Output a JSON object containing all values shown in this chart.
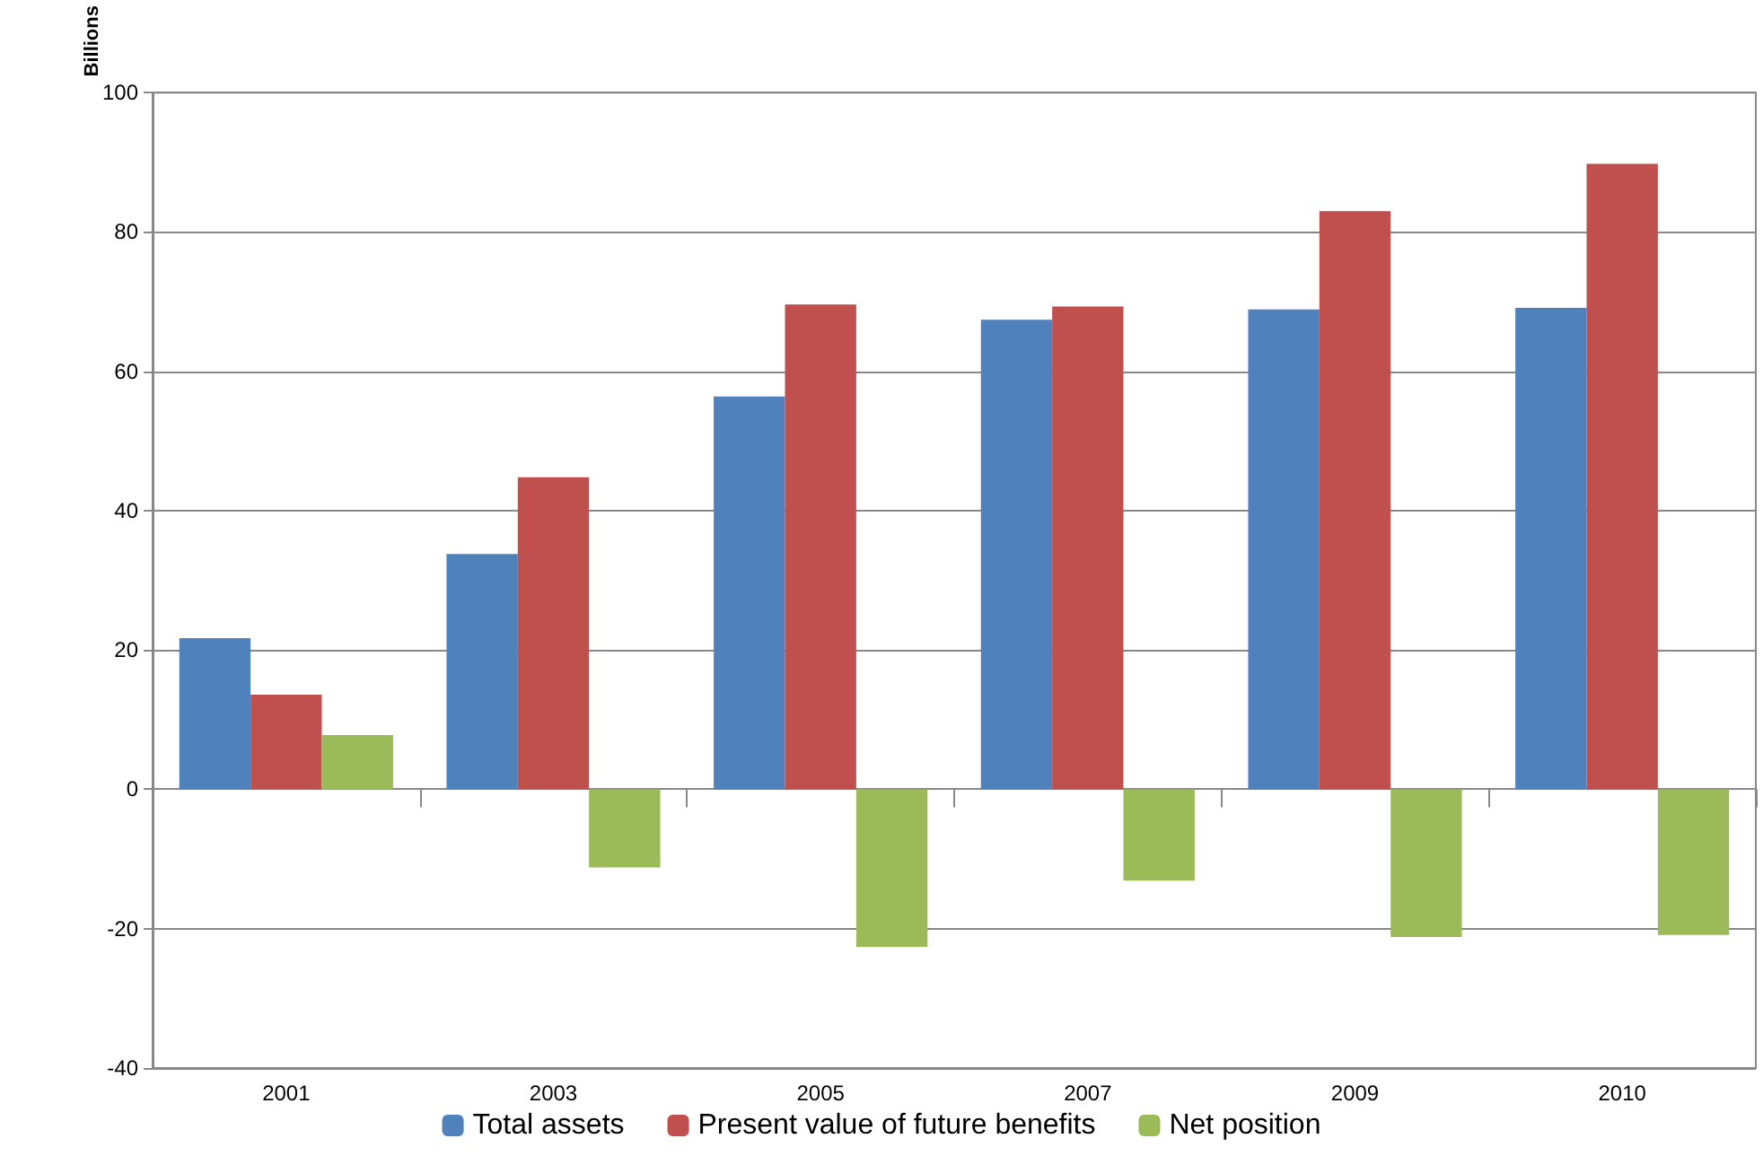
{
  "chart_data": {
    "type": "bar",
    "ylabel": "Billions",
    "categories": [
      "2001",
      "2003",
      "2005",
      "2007",
      "2009",
      "2010"
    ],
    "series": [
      {
        "name": "Total assets",
        "color": "#4f81bd",
        "values": [
          21.7,
          33.8,
          56.4,
          67.4,
          68.9,
          69.1
        ]
      },
      {
        "name": "Present value of future benefits",
        "color": "#c0504d",
        "values": [
          13.6,
          44.8,
          69.6,
          69.3,
          83.0,
          89.8
        ]
      },
      {
        "name": "Net position",
        "color": "#9bbb59",
        "values": [
          7.8,
          -11.2,
          -22.6,
          -13.1,
          -21.2,
          -20.9
        ]
      }
    ],
    "ylim": [
      -40,
      100
    ],
    "yticks": [
      -40,
      -20,
      0,
      20,
      40,
      60,
      80,
      100
    ],
    "grid": "y",
    "legend": "bottom"
  }
}
